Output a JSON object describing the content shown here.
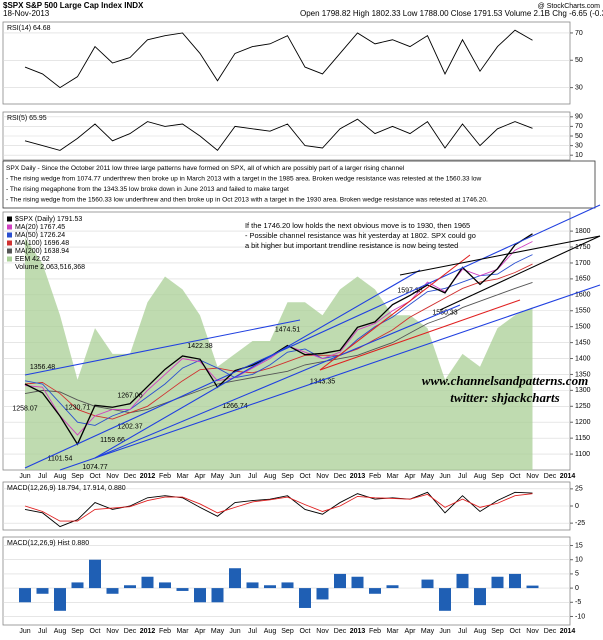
{
  "header": {
    "symbol": "$SPX S&P 500 Large Cap Index INDX",
    "date": "18-Nov-2013",
    "quote": "Open 1798.82 High 1802.33 Low 1788.00 Close 1791.53 Volume 2.1B Chg -6.65 (-0.37%)",
    "credit": "@ StockCharts.com"
  },
  "commentary": {
    "lines": [
      "SPX Daily - Since the October 2011 low three large patterns have formed on SPX, all of which are possibly part of a larger rising channel",
      "- The rising wedge from 1074.77 underthrew then broke up in March 2013 with a target in the 1985 area. Broken wedge resistance was retested at the 1560.33 low",
      "- The rising megaphone from the 1343.35 low broke down in June 2013 and failed to make target",
      "- The rising wedge from the 1560.33 low underthrew and then broke up in Oct 2013 with a target in the 1930 area. Broken wedge resistance was retested at 1746.20."
    ]
  },
  "chart_data": [
    {
      "type": "line",
      "title": "RSI(14) 64.68",
      "ylim": [
        18,
        78
      ],
      "yticks": [
        70,
        50,
        30
      ],
      "grid": true,
      "series": [
        {
          "color": "#000000",
          "values": [
            45,
            40,
            30,
            38,
            60,
            48,
            52,
            65,
            68,
            70,
            55,
            35,
            55,
            60,
            62,
            68,
            45,
            40,
            55,
            70,
            62,
            65,
            60,
            68,
            40,
            65,
            42,
            60,
            72,
            64.68,
            null,
            null
          ]
        }
      ]
    },
    {
      "type": "line",
      "title": "RSI(5) 65.95",
      "ylim": [
        0,
        100
      ],
      "yticks": [
        90,
        70,
        50,
        30,
        10
      ],
      "grid": true,
      "series": [
        {
          "color": "#000000",
          "values": [
            40,
            30,
            20,
            45,
            75,
            40,
            55,
            80,
            70,
            75,
            50,
            20,
            70,
            65,
            60,
            75,
            30,
            25,
            65,
            85,
            55,
            70,
            55,
            80,
            25,
            75,
            30,
            65,
            80,
            65.95,
            null,
            null
          ]
        }
      ]
    },
    {
      "type": "line",
      "grid": true,
      "ylim": [
        1050,
        1860
      ],
      "yticks": [
        1800,
        1750,
        1700,
        1650,
        1600,
        1550,
        1500,
        1450,
        1400,
        1350,
        1300,
        1250,
        1200,
        1150,
        1100
      ],
      "y2lim": [
        30,
        50
      ],
      "categories": [
        "Jun",
        "Jul",
        "Aug",
        "Sep",
        "Oct",
        "Nov",
        "Dec",
        "2012",
        "Feb",
        "Mar",
        "Apr",
        "May",
        "Jun",
        "Jul",
        "Aug",
        "Sep",
        "Oct",
        "Nov",
        "Dec",
        "2013",
        "Feb",
        "Mar",
        "Apr",
        "May",
        "Jun",
        "Jul",
        "Aug",
        "Sep",
        "Oct",
        "Nov",
        "Dec",
        "2014"
      ],
      "series": [
        {
          "name": "EEM 42.62",
          "color": "#a9cf96",
          "axis": "y2",
          "values": [
            48,
            46,
            42,
            37,
            41,
            39,
            39,
            43,
            45,
            44,
            42,
            38,
            39,
            40,
            40,
            43,
            43,
            42,
            44,
            45,
            44,
            42,
            42,
            41,
            37,
            39,
            38,
            41,
            42,
            42.62,
            null,
            null
          ]
        },
        {
          "name": "MA(200) 1638.94",
          "color": "#555555",
          "values": [
            1290,
            1300,
            1295,
            1270,
            1250,
            1240,
            1230,
            1240,
            1260,
            1280,
            1300,
            1320,
            1330,
            1340,
            1350,
            1360,
            1380,
            1390,
            1400,
            1410,
            1430,
            1450,
            1480,
            1510,
            1530,
            1560,
            1580,
            1600,
            1620,
            1638.94,
            null,
            null
          ]
        },
        {
          "name": "MA(100) 1696.48",
          "color": "#d03030",
          "values": [
            1320,
            1325,
            1290,
            1240,
            1220,
            1210,
            1230,
            1250,
            1290,
            1330,
            1365,
            1370,
            1360,
            1355,
            1370,
            1390,
            1410,
            1410,
            1410,
            1430,
            1460,
            1490,
            1530,
            1560,
            1590,
            1620,
            1640,
            1650,
            1670,
            1696.48,
            null,
            null
          ]
        },
        {
          "name": "MA(50) 1726.24",
          "color": "#2a4fd0",
          "values": [
            1330,
            1320,
            1260,
            1200,
            1190,
            1220,
            1240,
            1280,
            1320,
            1370,
            1395,
            1370,
            1340,
            1350,
            1380,
            1420,
            1430,
            1400,
            1410,
            1460,
            1500,
            1530,
            1570,
            1610,
            1620,
            1640,
            1660,
            1665,
            1700,
            1726.24,
            null,
            null
          ]
        },
        {
          "name": "MA(20) 1767.45",
          "color": "#d040c0",
          "values": [
            1315,
            1310,
            1220,
            1160,
            1220,
            1240,
            1240,
            1300,
            1350,
            1400,
            1390,
            1330,
            1340,
            1370,
            1400,
            1440,
            1420,
            1400,
            1420,
            1490,
            1510,
            1550,
            1580,
            1640,
            1610,
            1680,
            1660,
            1680,
            1740,
            1767.45,
            null,
            null
          ]
        },
        {
          "name": "$SPX (Daily) 1791.53",
          "color": "#000000",
          "values": [
            1320,
            1292,
            1219,
            1131,
            1253,
            1247,
            1258,
            1312,
            1366,
            1408,
            1398,
            1310,
            1362,
            1379,
            1406,
            1441,
            1412,
            1416,
            1426,
            1498,
            1515,
            1569,
            1598,
            1631,
            1606,
            1686,
            1633,
            1682,
            1757,
            1791.53,
            null,
            null
          ]
        }
      ],
      "volume_label": "Volume 2,063,516,368",
      "high_labels": [
        null,
        1356.48,
        null,
        1230.71,
        null,
        null,
        1267.06,
        null,
        null,
        null,
        1422.38,
        null,
        null,
        null,
        null,
        1474.51,
        null,
        null,
        null,
        null,
        null,
        null,
        1597.35,
        null,
        null,
        null,
        null,
        null,
        null,
        null,
        null,
        null
      ],
      "low_labels": [
        1258.07,
        null,
        1101.54,
        null,
        1074.77,
        1159.66,
        1202.37,
        null,
        null,
        null,
        null,
        null,
        1266.74,
        null,
        null,
        null,
        null,
        1343.35,
        null,
        null,
        null,
        null,
        null,
        null,
        1560.33,
        null,
        null,
        null,
        null,
        null,
        null,
        null
      ],
      "annotation": [
        "If the 1746.20 low holds the next obvious move is to 1930, then 1965",
        "- Possible channel resistance was hit yesterday at 1802. SPX could go",
        "a bit higher but important trendline resistance is now being tested"
      ],
      "watermark": [
        "www.channelsandpatterns.com",
        "twitter: shjackcharts"
      ]
    },
    {
      "type": "line",
      "title": "MACD(12,26,9) 18.794, 17.914, 0.880",
      "ylim": [
        -35,
        35
      ],
      "yticks": [
        25,
        0,
        -25
      ],
      "grid": true,
      "series": [
        {
          "color": "#000000",
          "values": [
            -5,
            -10,
            -30,
            -20,
            5,
            -5,
            0,
            12,
            15,
            12,
            -2,
            -15,
            5,
            8,
            10,
            15,
            -5,
            -12,
            5,
            18,
            10,
            12,
            10,
            20,
            -10,
            15,
            -8,
            8,
            20,
            18.794,
            null,
            null
          ]
        },
        {
          "color": "#e02020",
          "values": [
            0,
            -8,
            -22,
            -22,
            -5,
            -3,
            -1,
            8,
            13,
            13,
            3,
            -10,
            -2,
            6,
            9,
            13,
            2,
            -8,
            0,
            14,
            12,
            11,
            10,
            17,
            -2,
            10,
            -2,
            4,
            15,
            17.914,
            null,
            null
          ]
        }
      ]
    },
    {
      "type": "bar",
      "title": "MACD(12,26,9) Hist 0.880",
      "ylim": [
        -13,
        18
      ],
      "yticks": [
        15,
        10,
        5,
        0,
        -5,
        -10
      ],
      "grid": true,
      "color": "#1f5fb4",
      "categories": [
        "Jun",
        "Jul",
        "Aug",
        "Sep",
        "Oct",
        "Nov",
        "Dec",
        "2012",
        "Feb",
        "Mar",
        "Apr",
        "May",
        "Jun",
        "Jul",
        "Aug",
        "Sep",
        "Oct",
        "Nov",
        "Dec",
        "2013",
        "Feb",
        "Mar",
        "Apr",
        "May",
        "Jun",
        "Jul",
        "Aug",
        "Sep",
        "Oct",
        "Nov",
        "Dec",
        "2014"
      ],
      "values": [
        -5,
        -2,
        -8,
        2,
        10,
        -2,
        1,
        4,
        2,
        -1,
        -5,
        -5,
        7,
        2,
        1,
        2,
        -7,
        -4,
        5,
        4,
        -2,
        1,
        0,
        3,
        -8,
        5,
        -6,
        4,
        5,
        0.88,
        null,
        null
      ]
    }
  ]
}
